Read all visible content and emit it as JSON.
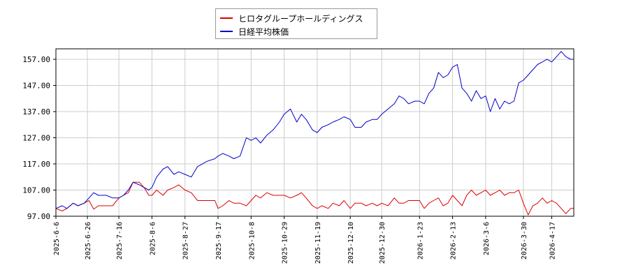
{
  "chart_data": {
    "type": "line",
    "title": "",
    "xlabel": "",
    "ylabel": "",
    "x_range": [
      "2025-06-06",
      "2026-05-01"
    ],
    "ylim": [
      97.0,
      161.0
    ],
    "yticks": [
      "97.00",
      "107.00",
      "117.00",
      "127.00",
      "137.00",
      "147.00",
      "157.00"
    ],
    "xticks": [
      "2025-6-6",
      "2025-6-26",
      "2025-7-16",
      "2025-8-6",
      "2025-8-27",
      "2025-9-17",
      "2025-10-8",
      "2025-10-29",
      "2025-11-19",
      "2025-12-10",
      "2025-12-30",
      "2026-1-23",
      "2026-2-13",
      "2026-3-6",
      "2026-3-30",
      "2026-4-17"
    ],
    "grid": true,
    "legend_position": "top-center",
    "series": [
      {
        "name": "ヒロタグループホールディングス",
        "color": "#dd0000",
        "points": [
          [
            "2025-06-06",
            100.0
          ],
          [
            "2025-06-10",
            99.0
          ],
          [
            "2025-06-13",
            100.0
          ],
          [
            "2025-06-17",
            102.0
          ],
          [
            "2025-06-20",
            101.0
          ],
          [
            "2025-06-24",
            102.0
          ],
          [
            "2025-06-27",
            103.0
          ],
          [
            "2025-06-30",
            99.7
          ],
          [
            "2025-07-03",
            101.0
          ],
          [
            "2025-07-08",
            101.0
          ],
          [
            "2025-07-12",
            101.0
          ],
          [
            "2025-07-16",
            104.0
          ],
          [
            "2025-07-19",
            105.0
          ],
          [
            "2025-07-22",
            106.0
          ],
          [
            "2025-07-25",
            110.0
          ],
          [
            "2025-07-29",
            110.0
          ],
          [
            "2025-08-01",
            108.0
          ],
          [
            "2025-08-04",
            105.0
          ],
          [
            "2025-08-06",
            105.0
          ],
          [
            "2025-08-09",
            107.0
          ],
          [
            "2025-08-13",
            105.0
          ],
          [
            "2025-08-16",
            107.0
          ],
          [
            "2025-08-20",
            108.0
          ],
          [
            "2025-08-23",
            109.0
          ],
          [
            "2025-08-27",
            107.0
          ],
          [
            "2025-08-31",
            106.0
          ],
          [
            "2025-09-04",
            103.0
          ],
          [
            "2025-09-10",
            103.0
          ],
          [
            "2025-09-15",
            103.0
          ],
          [
            "2025-09-17",
            100.0
          ],
          [
            "2025-09-20",
            101.0
          ],
          [
            "2025-09-24",
            103.0
          ],
          [
            "2025-09-27",
            102.0
          ],
          [
            "2025-10-01",
            102.0
          ],
          [
            "2025-10-05",
            101.0
          ],
          [
            "2025-10-08",
            103.0
          ],
          [
            "2025-10-11",
            105.0
          ],
          [
            "2025-10-14",
            104.0
          ],
          [
            "2025-10-18",
            106.0
          ],
          [
            "2025-10-22",
            105.0
          ],
          [
            "2025-10-26",
            105.0
          ],
          [
            "2025-10-29",
            105.0
          ],
          [
            "2025-11-02",
            104.0
          ],
          [
            "2025-11-06",
            105.0
          ],
          [
            "2025-11-09",
            106.0
          ],
          [
            "2025-11-12",
            104.0
          ],
          [
            "2025-11-16",
            101.0
          ],
          [
            "2025-11-19",
            100.0
          ],
          [
            "2025-11-22",
            101.0
          ],
          [
            "2025-11-26",
            100.0
          ],
          [
            "2025-11-29",
            102.0
          ],
          [
            "2025-12-03",
            101.0
          ],
          [
            "2025-12-06",
            103.0
          ],
          [
            "2025-12-10",
            100.0
          ],
          [
            "2025-12-13",
            102.0
          ],
          [
            "2025-12-17",
            102.0
          ],
          [
            "2025-12-20",
            101.0
          ],
          [
            "2025-12-24",
            102.0
          ],
          [
            "2025-12-27",
            101.0
          ],
          [
            "2025-12-30",
            102.0
          ],
          [
            "2026-01-03",
            101.0
          ],
          [
            "2026-01-07",
            104.0
          ],
          [
            "2026-01-10",
            102.0
          ],
          [
            "2026-01-13",
            102.0
          ],
          [
            "2026-01-16",
            103.0
          ],
          [
            "2026-01-20",
            103.0
          ],
          [
            "2026-01-23",
            103.0
          ],
          [
            "2026-01-26",
            100.0
          ],
          [
            "2026-01-29",
            102.0
          ],
          [
            "2026-02-01",
            103.0
          ],
          [
            "2026-02-04",
            104.0
          ],
          [
            "2026-02-07",
            101.0
          ],
          [
            "2026-02-10",
            102.0
          ],
          [
            "2026-02-13",
            105.0
          ],
          [
            "2026-02-16",
            103.0
          ],
          [
            "2026-02-19",
            101.0
          ],
          [
            "2026-02-22",
            105.0
          ],
          [
            "2026-02-25",
            107.0
          ],
          [
            "2026-02-28",
            105.0
          ],
          [
            "2026-03-03",
            106.0
          ],
          [
            "2026-03-06",
            107.0
          ],
          [
            "2026-03-09",
            105.0
          ],
          [
            "2026-03-12",
            106.0
          ],
          [
            "2026-03-15",
            107.0
          ],
          [
            "2026-03-18",
            105.0
          ],
          [
            "2026-03-21",
            106.0
          ],
          [
            "2026-03-24",
            106.0
          ],
          [
            "2026-03-27",
            107.0
          ],
          [
            "2026-03-30",
            102.0
          ],
          [
            "2026-04-02",
            97.5
          ],
          [
            "2026-04-05",
            101.0
          ],
          [
            "2026-04-08",
            102.0
          ],
          [
            "2026-04-11",
            104.0
          ],
          [
            "2026-04-14",
            102.0
          ],
          [
            "2026-04-17",
            103.0
          ],
          [
            "2026-04-20",
            102.0
          ],
          [
            "2026-04-23",
            100.0
          ],
          [
            "2026-04-26",
            98.0
          ],
          [
            "2026-04-29",
            100.0
          ],
          [
            "2026-05-01",
            100.0
          ]
        ]
      },
      {
        "name": "日経平均株価",
        "color": "#0000cc",
        "points": [
          [
            "2025-06-06",
            100.0
          ],
          [
            "2025-06-10",
            101.0
          ],
          [
            "2025-06-13",
            100.0
          ],
          [
            "2025-06-17",
            102.0
          ],
          [
            "2025-06-20",
            101.0
          ],
          [
            "2025-06-24",
            102.0
          ],
          [
            "2025-06-27",
            104.0
          ],
          [
            "2025-06-30",
            106.0
          ],
          [
            "2025-07-03",
            105.0
          ],
          [
            "2025-07-08",
            105.0
          ],
          [
            "2025-07-12",
            104.0
          ],
          [
            "2025-07-16",
            104.0
          ],
          [
            "2025-07-19",
            105.0
          ],
          [
            "2025-07-22",
            107.0
          ],
          [
            "2025-07-25",
            110.0
          ],
          [
            "2025-07-29",
            109.0
          ],
          [
            "2025-08-01",
            108.0
          ],
          [
            "2025-08-04",
            107.0
          ],
          [
            "2025-08-06",
            108.0
          ],
          [
            "2025-08-09",
            112.0
          ],
          [
            "2025-08-13",
            115.0
          ],
          [
            "2025-08-16",
            116.0
          ],
          [
            "2025-08-20",
            113.0
          ],
          [
            "2025-08-23",
            114.0
          ],
          [
            "2025-08-27",
            113.0
          ],
          [
            "2025-08-31",
            112.0
          ],
          [
            "2025-09-04",
            116.0
          ],
          [
            "2025-09-10",
            118.0
          ],
          [
            "2025-09-15",
            119.0
          ],
          [
            "2025-09-17",
            120.0
          ],
          [
            "2025-09-20",
            121.0
          ],
          [
            "2025-09-24",
            120.0
          ],
          [
            "2025-09-27",
            119.0
          ],
          [
            "2025-10-01",
            120.0
          ],
          [
            "2025-10-05",
            127.0
          ],
          [
            "2025-10-08",
            126.0
          ],
          [
            "2025-10-11",
            127.0
          ],
          [
            "2025-10-14",
            125.0
          ],
          [
            "2025-10-18",
            128.0
          ],
          [
            "2025-10-22",
            130.0
          ],
          [
            "2025-10-26",
            133.0
          ],
          [
            "2025-10-29",
            136.0
          ],
          [
            "2025-11-02",
            138.0
          ],
          [
            "2025-11-06",
            133.0
          ],
          [
            "2025-11-09",
            136.0
          ],
          [
            "2025-11-12",
            134.0
          ],
          [
            "2025-11-16",
            130.0
          ],
          [
            "2025-11-19",
            129.0
          ],
          [
            "2025-11-22",
            131.0
          ],
          [
            "2025-11-26",
            132.0
          ],
          [
            "2025-11-29",
            133.0
          ],
          [
            "2025-12-03",
            134.0
          ],
          [
            "2025-12-06",
            135.0
          ],
          [
            "2025-12-10",
            134.0
          ],
          [
            "2025-12-13",
            131.0
          ],
          [
            "2025-12-17",
            131.0
          ],
          [
            "2025-12-20",
            133.0
          ],
          [
            "2025-12-24",
            134.0
          ],
          [
            "2025-12-27",
            134.0
          ],
          [
            "2025-12-30",
            136.0
          ],
          [
            "2026-01-03",
            138.0
          ],
          [
            "2026-01-07",
            140.0
          ],
          [
            "2026-01-10",
            143.0
          ],
          [
            "2026-01-13",
            142.0
          ],
          [
            "2026-01-16",
            140.0
          ],
          [
            "2026-01-20",
            141.0
          ],
          [
            "2026-01-23",
            141.0
          ],
          [
            "2026-01-26",
            140.0
          ],
          [
            "2026-01-29",
            144.0
          ],
          [
            "2026-02-01",
            146.0
          ],
          [
            "2026-02-04",
            152.0
          ],
          [
            "2026-02-07",
            150.0
          ],
          [
            "2026-02-10",
            151.0
          ],
          [
            "2026-02-13",
            154.0
          ],
          [
            "2026-02-16",
            155.0
          ],
          [
            "2026-02-19",
            146.0
          ],
          [
            "2026-02-22",
            144.0
          ],
          [
            "2026-02-25",
            141.0
          ],
          [
            "2026-02-28",
            145.0
          ],
          [
            "2026-03-03",
            142.0
          ],
          [
            "2026-03-06",
            143.0
          ],
          [
            "2026-03-09",
            137.0
          ],
          [
            "2026-03-12",
            142.0
          ],
          [
            "2026-03-15",
            138.0
          ],
          [
            "2026-03-18",
            141.0
          ],
          [
            "2026-03-21",
            140.0
          ],
          [
            "2026-03-24",
            141.0
          ],
          [
            "2026-03-27",
            148.0
          ],
          [
            "2026-03-30",
            149.0
          ],
          [
            "2026-04-02",
            151.0
          ],
          [
            "2026-04-05",
            153.0
          ],
          [
            "2026-04-08",
            155.0
          ],
          [
            "2026-04-11",
            156.0
          ],
          [
            "2026-04-14",
            157.0
          ],
          [
            "2026-04-17",
            156.0
          ],
          [
            "2026-04-20",
            158.0
          ],
          [
            "2026-04-23",
            160.0
          ],
          [
            "2026-04-26",
            158.0
          ],
          [
            "2026-04-29",
            157.0
          ],
          [
            "2026-05-01",
            157.0
          ]
        ]
      }
    ]
  }
}
